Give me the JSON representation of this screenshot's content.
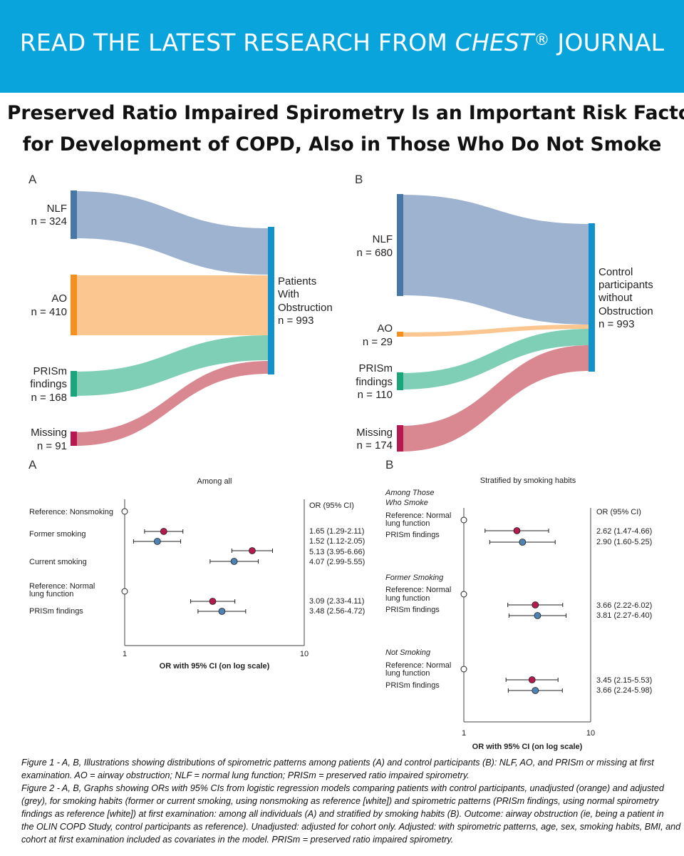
{
  "banner": {
    "pre": "READ THE LATEST RESEARCH FROM ",
    "journal": "CHEST",
    "reg": "®",
    "post": " JOURNAL"
  },
  "title": {
    "line1": "Preserved Ratio Impaired Spirometry Is an Important Risk Factor",
    "line2": "for Development of COPD, Also in Those Who Do Not Smoke"
  },
  "colors": {
    "banner": "#0aa4dc",
    "nlf": "#9db3cf",
    "nlf_bar": "#4876a6",
    "ao": "#fbc68f",
    "ao_bar": "#f5901f",
    "prism": "#7fcfb6",
    "prism_bar": "#1aa57a",
    "missing": "#d98791",
    "missing_bar": "#b8174f",
    "target_bar": "#1292cc",
    "unadjusted": "#b5194f",
    "adjusted": "#4d82b5"
  },
  "sankey": {
    "a": {
      "panel": "A",
      "sources": [
        {
          "name": "NLF",
          "n": "n = 324"
        },
        {
          "name": "AO",
          "n": "n = 410"
        },
        {
          "name1": "PRISm",
          "name2": "findings",
          "n": "n = 168"
        },
        {
          "name": "Missing",
          "n": "n = 91"
        }
      ],
      "target": {
        "line1": "Patients",
        "line2": "With",
        "line3": "Obstruction",
        "n": "n = 993"
      }
    },
    "b": {
      "panel": "B",
      "sources": [
        {
          "name": "NLF",
          "n": "n = 680"
        },
        {
          "name": "AO",
          "n": "n = 29"
        },
        {
          "name1": "PRISm",
          "name2": "findings",
          "n": "n = 110"
        },
        {
          "name": "Missing",
          "n": "n = 174"
        }
      ],
      "target": {
        "line1": "Control",
        "line2": "participants",
        "line3": "without",
        "line4": "Obstruction",
        "n": "n = 993"
      }
    }
  },
  "chart_data": [
    {
      "type": "scatter",
      "panel": "A",
      "title": "Among all",
      "xlabel": "OR with 95% CI (on log scale)",
      "xscale": "log",
      "xlim": [
        1,
        10
      ],
      "ticks": [
        "1",
        "10"
      ],
      "or_header": "OR (95% CI)",
      "rows": [
        {
          "label": "Reference: Nonsmoking",
          "ref": true
        },
        {
          "label": "Former smoking",
          "points": [
            {
              "group": "unadjusted",
              "or": 1.65,
              "lo": 1.29,
              "hi": 2.11,
              "text": "1.65 (1.29-2.11)"
            },
            {
              "group": "adjusted",
              "or": 1.52,
              "lo": 1.12,
              "hi": 2.05,
              "text": "1.52 (1.12-2.05)"
            }
          ]
        },
        {
          "label": "Current smoking",
          "points": [
            {
              "group": "unadjusted",
              "or": 5.13,
              "lo": 3.95,
              "hi": 6.66,
              "text": "5.13 (3.95-6.66)"
            },
            {
              "group": "adjusted",
              "or": 4.07,
              "lo": 2.99,
              "hi": 5.55,
              "text": "4.07 (2.99-5.55)"
            }
          ]
        },
        {
          "label1": "Reference: Normal",
          "label2": "lung function",
          "ref": true
        },
        {
          "label": "PRISm findings",
          "points": [
            {
              "group": "unadjusted",
              "or": 3.09,
              "lo": 2.33,
              "hi": 4.11,
              "text": "3.09 (2.33-4.11)"
            },
            {
              "group": "adjusted",
              "or": 3.48,
              "lo": 2.56,
              "hi": 4.72,
              "text": "3.48 (2.56-4.72)"
            }
          ]
        }
      ]
    },
    {
      "type": "scatter",
      "panel": "B",
      "title": "Stratified by smoking habits",
      "xlabel": "OR with 95% CI (on log scale)",
      "xscale": "log",
      "xlim": [
        1,
        10
      ],
      "ticks": [
        "1",
        "10"
      ],
      "or_header": "OR (95% CI)",
      "groups": [
        {
          "heading1": "Among Those",
          "heading2": "Who Smoke",
          "ref1": "Reference: Normal",
          "ref2": "lung function",
          "label": "PRISm findings",
          "points": [
            {
              "group": "unadjusted",
              "or": 2.62,
              "lo": 1.47,
              "hi": 4.66,
              "text": "2.62 (1.47-4.66)"
            },
            {
              "group": "adjusted",
              "or": 2.9,
              "lo": 1.6,
              "hi": 5.25,
              "text": "2.90 (1.60-5.25)"
            }
          ]
        },
        {
          "heading1": "Former Smoking",
          "ref1": "Reference: Normal",
          "ref2": "lung function",
          "label": "PRISm findings",
          "points": [
            {
              "group": "unadjusted",
              "or": 3.66,
              "lo": 2.22,
              "hi": 6.02,
              "text": "3.66 (2.22-6.02)"
            },
            {
              "group": "adjusted",
              "or": 3.81,
              "lo": 2.27,
              "hi": 6.4,
              "text": "3.81 (2.27-6.40)"
            }
          ]
        },
        {
          "heading1": "Not Smoking",
          "ref1": "Reference: Normal",
          "ref2": "lung function",
          "label": "PRISm findings",
          "points": [
            {
              "group": "unadjusted",
              "or": 3.45,
              "lo": 2.15,
              "hi": 5.53,
              "text": "3.45 (2.15-5.53)"
            },
            {
              "group": "adjusted",
              "or": 3.66,
              "lo": 2.24,
              "hi": 5.98,
              "text": "3.66 (2.24-5.98)"
            }
          ]
        }
      ]
    }
  ],
  "caption": {
    "l1": "Figure 1 -  A, B, Illustrations showing distributions of spirometric patterns among patients (A) and control participants (B): NLF, AO, and PRISm or missing at first",
    "l2": "examination. AO = airway obstruction; NLF = normal lung function; PRISm = preserved ratio impaired spirometry.",
    "l3": "Figure 2 - A, B, Graphs showing ORs with 95% CIs from logistic regression models comparing patients with control participants, unadjusted (orange) and adjusted",
    "l4": "(grey), for smoking habits (former or current smoking, using nonsmoking as reference [white]) and spirometric patterns (PRISm findings, using normal spirometry",
    "l5": "findings as reference [white]) at first examination: among all individuals (A) and stratified by smoking habits (B). Outcome: airway obstruction (ie, being a patient in",
    "l6": "the OLIN COPD Study, control participants as reference). Unadjusted: adjusted for cohort only. Adjusted: with spirometric patterns, age, sex, smoking habits, BMI, and",
    "l7": "cohort at first examination included as covariates in the model. PRISm = preserved ratio impaired spirometry."
  }
}
